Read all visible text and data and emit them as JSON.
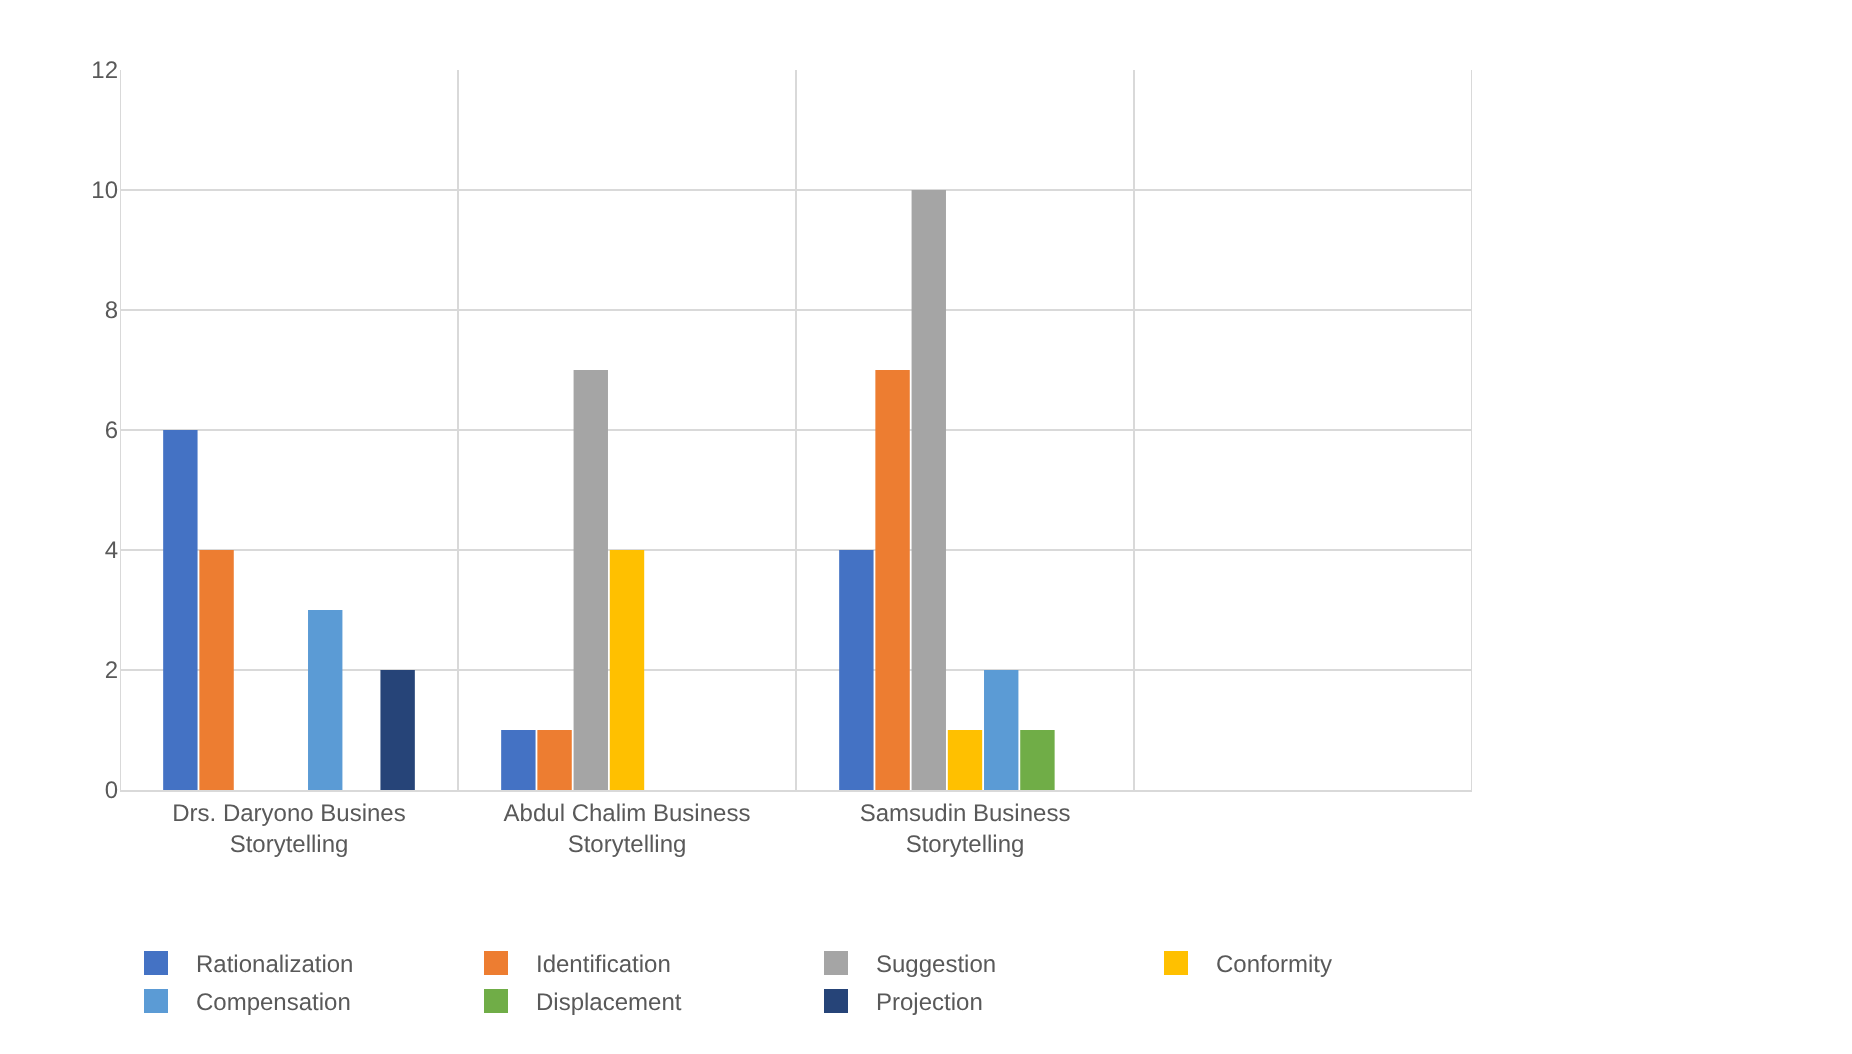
{
  "chart_data": {
    "type": "bar",
    "categories": [
      "Drs. Daryono Busines Storytelling",
      "Abdul Chalim Business Storytelling",
      "Samsudin Business Storytelling",
      null
    ],
    "series": [
      {
        "name": "Rationalization",
        "color": "#4472c4",
        "values": [
          6,
          1,
          4,
          null
        ]
      },
      {
        "name": "Identification",
        "color": "#ed7d31",
        "values": [
          4,
          1,
          7,
          null
        ]
      },
      {
        "name": "Suggestion",
        "color": "#a5a5a5",
        "values": [
          0,
          7,
          10,
          null
        ]
      },
      {
        "name": "Conformity",
        "color": "#ffc000",
        "values": [
          0,
          4,
          1,
          null
        ]
      },
      {
        "name": "Compensation",
        "color": "#5b9bd5",
        "values": [
          3,
          0,
          2,
          null
        ]
      },
      {
        "name": "Displacement",
        "color": "#70ad47",
        "values": [
          0,
          0,
          1,
          null
        ]
      },
      {
        "name": "Projection",
        "color": "#264478",
        "values": [
          2,
          0,
          0,
          null
        ]
      }
    ],
    "ylim": [
      0,
      12
    ],
    "yticks": [
      0,
      2,
      4,
      6,
      8,
      10,
      12
    ],
    "grid": true,
    "legend": "bottom"
  }
}
